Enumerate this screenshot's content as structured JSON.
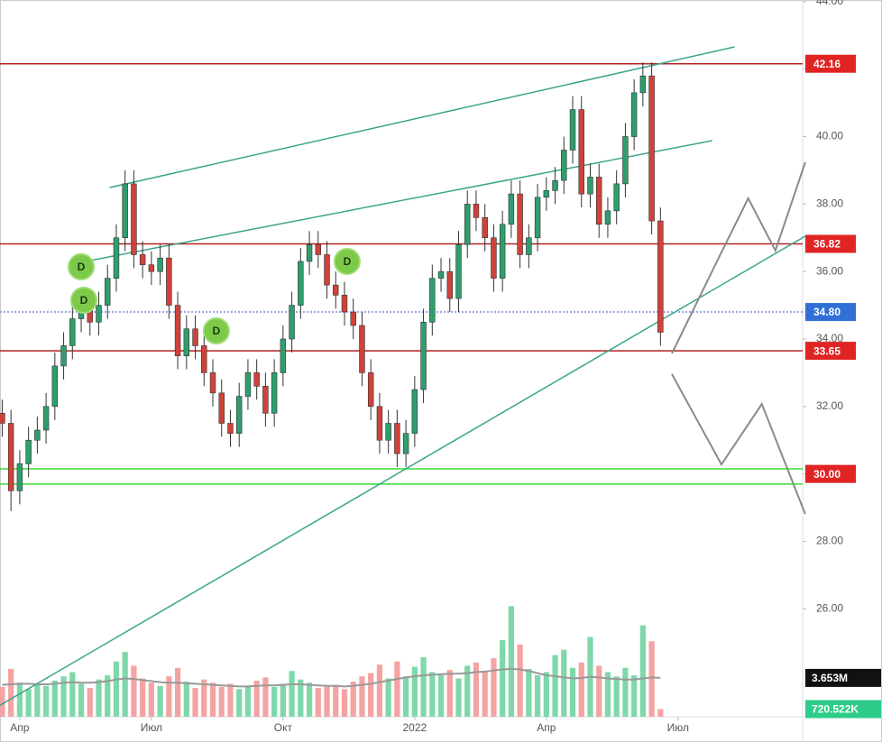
{
  "chart_data": {
    "type": "candlestick",
    "up_color": "#2f9e6e",
    "down_color": "#d0413a",
    "xlim": [
      2.55,
      20.84
    ],
    "xticks": [
      {
        "value": 3,
        "label": "Апр"
      },
      {
        "value": 6,
        "label": "Июл"
      },
      {
        "value": 9,
        "label": "Окт"
      },
      {
        "value": 12,
        "label": "2022"
      },
      {
        "value": 15,
        "label": "Апр"
      },
      {
        "value": 18,
        "label": "Июл"
      }
    ],
    "ylim": [
      22.8,
      44.05
    ],
    "yticks": [
      {
        "value": 26,
        "label": "26.00"
      },
      {
        "value": 28,
        "label": "28.00"
      },
      {
        "value": 30,
        "label": "30.00"
      },
      {
        "value": 32,
        "label": "32.00"
      },
      {
        "value": 34,
        "label": "34.00"
      },
      {
        "value": 36,
        "label": "36.00"
      },
      {
        "value": 38,
        "label": "38.00"
      },
      {
        "value": 40,
        "label": "40.00"
      },
      {
        "value": 42,
        "label": "42.00"
      },
      {
        "value": 44,
        "label": "44.00"
      }
    ],
    "x": [
      2.6,
      2.8,
      3,
      3.2,
      3.4,
      3.6,
      3.8,
      4,
      4.2,
      4.4,
      4.6,
      4.8,
      5,
      5.2,
      5.4,
      5.6,
      5.8,
      6,
      6.2,
      6.4,
      6.6,
      6.8,
      7,
      7.2,
      7.4,
      7.6,
      7.8,
      8,
      8.2,
      8.4,
      8.6,
      8.8,
      9,
      9.2,
      9.4,
      9.6,
      9.8,
      10,
      10.2,
      10.4,
      10.6,
      10.8,
      11,
      11.2,
      11.4,
      11.6,
      11.8,
      12,
      12.2,
      12.4,
      12.6,
      12.8,
      13,
      13.2,
      13.4,
      13.6,
      13.8,
      14,
      14.2,
      14.4,
      14.6,
      14.8,
      15,
      15.2,
      15.4,
      15.6,
      15.8,
      16,
      16.2,
      16.4,
      16.6,
      16.8,
      17,
      17.2,
      17.4,
      17.6
    ],
    "open": [
      31.8,
      31.5,
      29.5,
      30.3,
      31,
      31.3,
      32,
      33.2,
      33.8,
      34.6,
      35,
      34.5,
      35,
      35.8,
      37,
      38.6,
      36.5,
      36.2,
      36,
      36.4,
      35,
      33.5,
      34.3,
      33.8,
      33,
      32.4,
      31.5,
      31.2,
      32.3,
      33,
      32.6,
      31.8,
      33,
      34,
      35,
      36.3,
      36.8,
      36.5,
      35.6,
      35.3,
      34.8,
      34.4,
      33,
      32,
      31,
      31.5,
      30.6,
      31.2,
      32.5,
      34.5,
      35.8,
      36,
      35.2,
      36.8,
      38,
      37.6,
      37,
      35.8,
      37.4,
      38.3,
      36.5,
      37,
      38.2,
      38.4,
      38.7,
      39.6,
      40.8,
      38.3,
      38.8,
      37.4,
      37.8,
      38.6,
      40,
      41.3,
      41.8,
      37.5
    ],
    "high": [
      32.2,
      31.9,
      30.7,
      31.4,
      31.7,
      32.4,
      33.6,
      34.2,
      35,
      35.4,
      35.4,
      35.4,
      36.2,
      37.4,
      39,
      39,
      36.9,
      36.6,
      36.8,
      36.8,
      35.4,
      34.7,
      34.7,
      34.2,
      33.4,
      32.8,
      31.9,
      32.7,
      33.4,
      33.4,
      33,
      33.4,
      34.4,
      35.4,
      36.7,
      37.2,
      37.2,
      36.9,
      36,
      35.7,
      35.2,
      34.8,
      33.4,
      32.4,
      31.9,
      31.9,
      31.6,
      32.9,
      34.9,
      36.2,
      36.4,
      36.4,
      37.2,
      38.4,
      38.4,
      38,
      37.4,
      37.8,
      38.7,
      38.7,
      37.4,
      38.6,
      38.8,
      39.1,
      40,
      41.2,
      41.2,
      39.2,
      39.2,
      38.2,
      39,
      40.4,
      41.7,
      42.2,
      42.2,
      37.9
    ],
    "low": [
      31.1,
      28.9,
      29.1,
      29.9,
      30.6,
      30.9,
      31.6,
      32.8,
      33.4,
      34.2,
      34.1,
      34.1,
      34.6,
      35.4,
      36.6,
      36.1,
      35.8,
      35.6,
      35.6,
      34.6,
      33.1,
      33.1,
      33.4,
      32.6,
      32,
      31.1,
      30.8,
      30.8,
      31.9,
      32.2,
      31.4,
      31.4,
      32.6,
      33.6,
      34.6,
      35.9,
      36.1,
      35.2,
      34.9,
      34.4,
      34,
      32.6,
      31.6,
      30.6,
      30.6,
      30.2,
      30.2,
      30.8,
      32.1,
      34.1,
      35.4,
      34.8,
      34.8,
      36.4,
      37.2,
      36.6,
      35.4,
      35.4,
      37,
      36.1,
      36.1,
      36.6,
      37.8,
      38,
      38.3,
      39.2,
      37.9,
      37.9,
      37,
      37,
      37.4,
      38.2,
      39.6,
      40.9,
      37.1,
      33.8
    ],
    "close": [
      31.5,
      29.5,
      30.3,
      31,
      31.3,
      32,
      33.2,
      33.8,
      34.6,
      35,
      34.5,
      35,
      35.8,
      37,
      38.6,
      36.5,
      36.2,
      36,
      36.4,
      35,
      33.5,
      34.3,
      33.8,
      33,
      32.4,
      31.5,
      31.2,
      32.3,
      33,
      32.6,
      31.8,
      33,
      34,
      35,
      36.3,
      36.8,
      36.5,
      35.6,
      35.3,
      34.8,
      34.4,
      33,
      32,
      31,
      31.5,
      30.6,
      31.2,
      32.5,
      34.5,
      35.8,
      36,
      35.2,
      36.8,
      38,
      37.6,
      37,
      35.8,
      37.4,
      38.3,
      36.5,
      37,
      38.2,
      38.4,
      38.7,
      39.6,
      40.8,
      38.3,
      38.8,
      37.4,
      37.8,
      38.6,
      40,
      41.3,
      41.8,
      37.5,
      34.2
    ],
    "volume": {
      "y2lim": [
        0,
        67400000
      ],
      "up_color": "#7fd8aa",
      "down_color": "#f4a3a3",
      "ma_color": "#999999",
      "values": [
        2800000,
        4500000,
        3200000,
        2600000,
        3000000,
        2900000,
        3400000,
        3800000,
        4200000,
        3100000,
        2700000,
        3500000,
        3900000,
        5200000,
        6100000,
        4800000,
        3600000,
        3200000,
        2900000,
        3800000,
        4600000,
        3300000,
        2700000,
        3500000,
        3200000,
        2800000,
        3100000,
        2600000,
        2900000,
        3400000,
        3700000,
        2800000,
        3100000,
        4300000,
        3500000,
        3200000,
        2700000,
        2900000,
        3000000,
        2600000,
        3300000,
        3800000,
        4100000,
        4900000,
        3600000,
        5200000,
        3800000,
        4700000,
        5600000,
        4200000,
        3900000,
        4400000,
        3600000,
        4800000,
        5100000,
        4300000,
        5500000,
        7200000,
        10400000,
        6800000,
        4500000,
        3900000,
        4200000,
        5800000,
        6300000,
        4600000,
        5100000,
        7500000,
        4800000,
        4200000,
        3800000,
        4600000,
        3900000,
        8600000,
        7100000,
        720522
      ],
      "ma": [
        3000000,
        3050000,
        3100000,
        3100000,
        3050000,
        3050000,
        3100000,
        3200000,
        3250000,
        3200000,
        3200000,
        3250000,
        3350000,
        3500000,
        3600000,
        3550000,
        3450000,
        3350000,
        3250000,
        3200000,
        3200000,
        3150000,
        3100000,
        3050000,
        3000000,
        2950000,
        2900000,
        2850000,
        2850000,
        2900000,
        2950000,
        2950000,
        3000000,
        3050000,
        3050000,
        3000000,
        2950000,
        2900000,
        2900000,
        2850000,
        2900000,
        3000000,
        3100000,
        3250000,
        3400000,
        3550000,
        3700000,
        3800000,
        3900000,
        3950000,
        4000000,
        4050000,
        4050000,
        4100000,
        4200000,
        4250000,
        4350000,
        4450000,
        4500000,
        4450000,
        4300000,
        4100000,
        3900000,
        3800000,
        3700000,
        3600000,
        3650000,
        3750000,
        3700000,
        3600000,
        3550000,
        3500000,
        3500000,
        3600000,
        3700000,
        3653000
      ],
      "last_label": "720.522K",
      "last_label_color": "#2ecc8a",
      "ma_last_label": "3.653M",
      "ma_last_label_color": "#111111"
    },
    "levels": [
      {
        "value": 42.16,
        "label": "42.16",
        "color": "#b22222",
        "label_color": "#e02424",
        "style": "solid"
      },
      {
        "value": 36.82,
        "label": "36.82",
        "color": "#b22222",
        "label_color": "#e02424",
        "style": "solid"
      },
      {
        "value": 34.8,
        "label": "34.80",
        "color": "#3355cc",
        "label_color": "#2f6fd6",
        "style": "dotted"
      },
      {
        "value": 33.65,
        "label": "33.65",
        "color": "#b22222",
        "label_color": "#e02424",
        "style": "solid"
      },
      {
        "value": 30,
        "label": "30.00",
        "color": "#33dd33",
        "label_color": "#e02424",
        "style": "none",
        "band": [
          29.7,
          30.15
        ]
      }
    ],
    "trend_lines": [
      {
        "color": "#3aa58a",
        "x": [
          5.05,
          19.29
        ],
        "y": [
          38.49,
          42.66
        ]
      },
      {
        "color": "#3aa58a",
        "x": [
          4.5,
          18.78
        ],
        "y": [
          36.3,
          39.88
        ]
      },
      {
        "color": "#3aa58a",
        "x": [
          2.55,
          20.9
        ],
        "y": [
          23.14,
          37.05
        ]
      }
    ],
    "projections": [
      {
        "color": "#8a8a8a",
        "x": [
          17.86,
          18.99,
          19.6,
          20.22,
          20.9
        ],
        "y": [
          33.57,
          36.57,
          38.17,
          36.62,
          39.24
        ]
      },
      {
        "color": "#8a8a8a",
        "x": [
          17.86,
          18.99,
          19.91,
          20.9
        ],
        "y": [
          32.96,
          30.28,
          32.07,
          28.81
        ]
      }
    ],
    "markers": [
      {
        "x": 4.4,
        "y": 36.14,
        "label": "D",
        "color": "#7dc94a"
      },
      {
        "x": 4.46,
        "y": 35.15,
        "label": "D",
        "color": "#7dc94a"
      },
      {
        "x": 7.48,
        "y": 34.24,
        "label": "D",
        "color": "#7dc94a"
      },
      {
        "x": 10.46,
        "y": 36.3,
        "label": "D",
        "color": "#7dc94a"
      }
    ]
  }
}
